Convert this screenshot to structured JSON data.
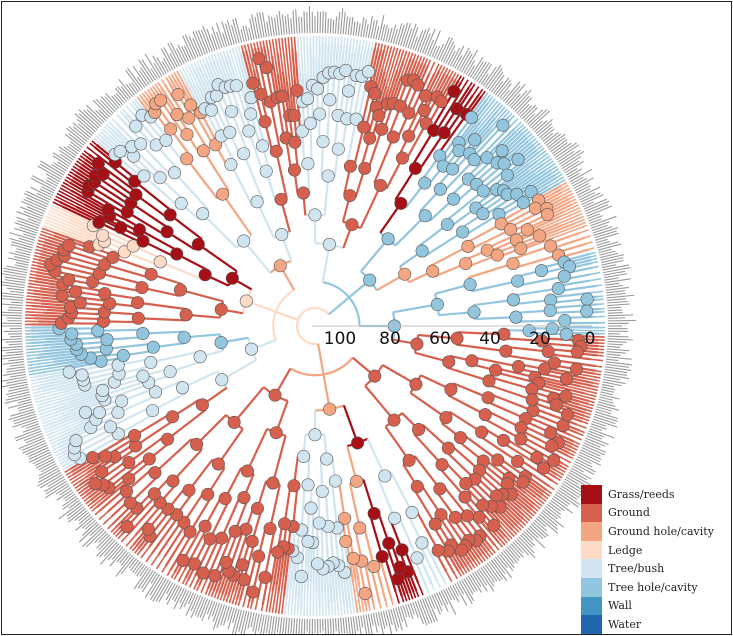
{
  "axis": {
    "ticks": [
      "100",
      "80",
      "60",
      "40",
      "20",
      "0"
    ]
  },
  "legend": {
    "items": [
      {
        "label": "Grass/reeds",
        "color": "#a50f15"
      },
      {
        "label": "Ground",
        "color": "#d6604d"
      },
      {
        "label": "Ground hole/cavity",
        "color": "#f4a582"
      },
      {
        "label": "Ledge",
        "color": "#fddbc7"
      },
      {
        "label": "Tree/bush",
        "color": "#d1e5f0"
      },
      {
        "label": "Tree hole/cavity",
        "color": "#92c5de"
      },
      {
        "label": "Wall",
        "color": "#4393c3"
      },
      {
        "label": "Water",
        "color": "#2166ac"
      }
    ]
  },
  "tree": {
    "tip_label_color": "#9a9a9a",
    "sectors": [
      {
        "habitat": "Ground",
        "from_deg": 20,
        "to_deg": 62
      },
      {
        "habitat": "Tree/bush",
        "from_deg": 62,
        "to_deg": 68
      },
      {
        "habitat": "Grass/reeds",
        "from_deg": 68,
        "to_deg": 74
      },
      {
        "habitat": "Ground hole/cavity",
        "from_deg": 74,
        "to_deg": 82
      },
      {
        "habitat": "Tree/bush",
        "from_deg": 82,
        "to_deg": 96
      },
      {
        "habitat": "Ground",
        "from_deg": 96,
        "to_deg": 150
      },
      {
        "habitat": "Tree/bush",
        "from_deg": 150,
        "to_deg": 170
      },
      {
        "habitat": "Tree hole/cavity",
        "from_deg": 170,
        "to_deg": 180
      },
      {
        "habitat": "Ground",
        "from_deg": 180,
        "to_deg": 200
      },
      {
        "habitat": "Ledge",
        "from_deg": 200,
        "to_deg": 205
      },
      {
        "habitat": "Grass/reeds",
        "from_deg": 205,
        "to_deg": 220
      },
      {
        "habitat": "Tree/bush",
        "from_deg": 220,
        "to_deg": 232
      },
      {
        "habitat": "Ground hole/cavity",
        "from_deg": 232,
        "to_deg": 242
      },
      {
        "habitat": "Tree/bush",
        "from_deg": 242,
        "to_deg": 255
      },
      {
        "habitat": "Ground",
        "from_deg": 255,
        "to_deg": 266
      },
      {
        "habitat": "Tree/bush",
        "from_deg": 266,
        "to_deg": 282
      },
      {
        "habitat": "Ground",
        "from_deg": 282,
        "to_deg": 300
      },
      {
        "habitat": "Grass/reeds",
        "from_deg": 300,
        "to_deg": 306
      },
      {
        "habitat": "Tree hole/cavity",
        "from_deg": 306,
        "to_deg": 330
      },
      {
        "habitat": "Ground hole/cavity",
        "from_deg": 330,
        "to_deg": 345
      },
      {
        "habitat": "Tree hole/cavity",
        "from_deg": 345,
        "to_deg": 362
      },
      {
        "habitat": "Ground",
        "from_deg": 362,
        "to_deg": 380
      }
    ]
  }
}
